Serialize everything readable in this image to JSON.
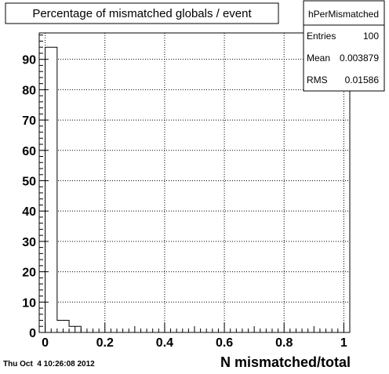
{
  "timestamp": "Thu Oct  4 10:26:08 2012",
  "chart_data": {
    "type": "bar",
    "title": "Percentage of mismatched globals / event",
    "xlabel": "N mismatched/total",
    "ylabel": "",
    "xlim": [
      -0.02,
      1.02
    ],
    "ylim": [
      0,
      98.7
    ],
    "grid": true,
    "histogram": true,
    "bin_width": 0.04,
    "x": [
      0.0,
      0.04,
      0.08,
      0.12
    ],
    "values": [
      94,
      4,
      2,
      0
    ],
    "xticks": [
      0,
      0.2,
      0.4,
      0.6,
      0.8,
      1
    ],
    "xtick_labels": [
      "0",
      "0.2",
      "0.4",
      "0.6",
      "0.8",
      "1"
    ],
    "yticks": [
      0,
      10,
      20,
      30,
      40,
      50,
      60,
      70,
      80,
      90
    ],
    "ytick_labels": [
      "0",
      "10",
      "20",
      "30",
      "40",
      "50",
      "60",
      "70",
      "80",
      "90"
    ],
    "stats_box": {
      "name": "hPerMismatched",
      "rows": [
        {
          "label": "Entries",
          "value": "100"
        },
        {
          "label": "Mean",
          "value": "0.003879"
        },
        {
          "label": "RMS",
          "value": "0.01586"
        }
      ]
    }
  }
}
